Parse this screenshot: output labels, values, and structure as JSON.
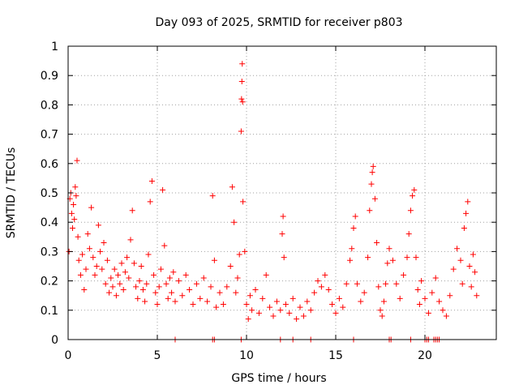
{
  "chart_data": {
    "type": "scatter",
    "title": "Day 093 of 2025, SRMTID for receiver p803",
    "xlabel": "GPS time / hours",
    "ylabel": "SRMTID / TECUs",
    "xlim": [
      0,
      24
    ],
    "ylim": [
      0,
      1
    ],
    "x_ticks": [
      0,
      5,
      10,
      15,
      20
    ],
    "x_tick_labels": [
      "0",
      "5",
      "10",
      "15",
      "20"
    ],
    "y_ticks": [
      0,
      0.1,
      0.2,
      0.3,
      0.4,
      0.5,
      0.6,
      0.7,
      0.8,
      0.9,
      1
    ],
    "y_tick_labels": [
      "0",
      "0.1",
      "0.2",
      "0.3",
      "0.4",
      "0.5",
      "0.6",
      "0.7",
      "0.8",
      "0.9",
      "1"
    ],
    "grid": true,
    "marker": "+",
    "series_color": "#ff0000",
    "series": [
      {
        "name": "SRMTID",
        "points": [
          [
            0.05,
            0.3
          ],
          [
            0.1,
            0.48
          ],
          [
            0.15,
            0.5
          ],
          [
            0.2,
            0.43
          ],
          [
            0.25,
            0.38
          ],
          [
            0.3,
            0.46
          ],
          [
            0.35,
            0.41
          ],
          [
            0.4,
            0.52
          ],
          [
            0.45,
            0.49
          ],
          [
            0.5,
            0.61
          ],
          [
            0.55,
            0.35
          ],
          [
            0.6,
            0.27
          ],
          [
            0.7,
            0.22
          ],
          [
            0.8,
            0.29
          ],
          [
            0.9,
            0.17
          ],
          [
            1.0,
            0.24
          ],
          [
            1.1,
            0.36
          ],
          [
            1.2,
            0.31
          ],
          [
            1.3,
            0.45
          ],
          [
            1.4,
            0.28
          ],
          [
            1.5,
            0.22
          ],
          [
            1.6,
            0.25
          ],
          [
            1.7,
            0.39
          ],
          [
            1.8,
            0.3
          ],
          [
            1.9,
            0.24
          ],
          [
            2.0,
            0.33
          ],
          [
            2.1,
            0.19
          ],
          [
            2.2,
            0.27
          ],
          [
            2.3,
            0.16
          ],
          [
            2.4,
            0.21
          ],
          [
            2.5,
            0.18
          ],
          [
            2.6,
            0.24
          ],
          [
            2.7,
            0.15
          ],
          [
            2.8,
            0.22
          ],
          [
            2.9,
            0.19
          ],
          [
            3.0,
            0.26
          ],
          [
            3.1,
            0.17
          ],
          [
            3.2,
            0.23
          ],
          [
            3.3,
            0.28
          ],
          [
            3.4,
            0.21
          ],
          [
            3.5,
            0.34
          ],
          [
            3.6,
            0.44
          ],
          [
            3.7,
            0.26
          ],
          [
            3.8,
            0.18
          ],
          [
            3.9,
            0.14
          ],
          [
            4.0,
            0.2
          ],
          [
            4.1,
            0.25
          ],
          [
            4.2,
            0.17
          ],
          [
            4.3,
            0.13
          ],
          [
            4.4,
            0.19
          ],
          [
            4.5,
            0.29
          ],
          [
            4.6,
            0.47
          ],
          [
            4.7,
            0.54
          ],
          [
            4.8,
            0.22
          ],
          [
            4.9,
            0.16
          ],
          [
            5.0,
            0.12
          ],
          [
            5.1,
            0.18
          ],
          [
            5.2,
            0.24
          ],
          [
            5.3,
            0.51
          ],
          [
            5.4,
            0.32
          ],
          [
            5.5,
            0.19
          ],
          [
            5.6,
            0.14
          ],
          [
            5.7,
            0.21
          ],
          [
            5.8,
            0.16
          ],
          [
            5.9,
            0.23
          ],
          [
            6.0,
            0.13
          ],
          [
            6.2,
            0.2
          ],
          [
            6.4,
            0.15
          ],
          [
            6.6,
            0.22
          ],
          [
            6.8,
            0.17
          ],
          [
            7.0,
            0.12
          ],
          [
            7.2,
            0.19
          ],
          [
            7.4,
            0.14
          ],
          [
            7.6,
            0.21
          ],
          [
            7.8,
            0.13
          ],
          [
            8.0,
            0.18
          ],
          [
            8.1,
            0.49
          ],
          [
            8.2,
            0.27
          ],
          [
            8.3,
            0.11
          ],
          [
            8.5,
            0.16
          ],
          [
            8.7,
            0.12
          ],
          [
            8.9,
            0.18
          ],
          [
            9.1,
            0.25
          ],
          [
            9.2,
            0.52
          ],
          [
            9.3,
            0.4
          ],
          [
            9.4,
            0.16
          ],
          [
            9.5,
            0.21
          ],
          [
            9.6,
            0.29
          ],
          [
            9.7,
            0.71
          ],
          [
            9.72,
            0.82
          ],
          [
            9.74,
            0.88
          ],
          [
            9.76,
            0.94
          ],
          [
            9.78,
            0.81
          ],
          [
            9.8,
            0.47
          ],
          [
            9.9,
            0.3
          ],
          [
            10.0,
            0.12
          ],
          [
            10.1,
            0.07
          ],
          [
            10.2,
            0.15
          ],
          [
            10.3,
            0.1
          ],
          [
            10.5,
            0.17
          ],
          [
            10.7,
            0.09
          ],
          [
            10.9,
            0.14
          ],
          [
            11.1,
            0.22
          ],
          [
            11.3,
            0.11
          ],
          [
            11.5,
            0.08
          ],
          [
            11.7,
            0.13
          ],
          [
            11.9,
            0.1
          ],
          [
            12.0,
            0.36
          ],
          [
            12.05,
            0.42
          ],
          [
            12.1,
            0.28
          ],
          [
            12.2,
            0.12
          ],
          [
            12.4,
            0.09
          ],
          [
            12.6,
            0.14
          ],
          [
            12.8,
            0.07
          ],
          [
            13.0,
            0.11
          ],
          [
            13.2,
            0.08
          ],
          [
            13.4,
            0.13
          ],
          [
            13.6,
            0.1
          ],
          [
            13.8,
            0.16
          ],
          [
            14.0,
            0.2
          ],
          [
            14.2,
            0.18
          ],
          [
            14.4,
            0.22
          ],
          [
            14.6,
            0.17
          ],
          [
            14.8,
            0.12
          ],
          [
            15.0,
            0.09
          ],
          [
            15.2,
            0.14
          ],
          [
            15.4,
            0.11
          ],
          [
            15.6,
            0.19
          ],
          [
            15.8,
            0.27
          ],
          [
            15.9,
            0.31
          ],
          [
            16.0,
            0.38
          ],
          [
            16.1,
            0.42
          ],
          [
            16.2,
            0.19
          ],
          [
            16.4,
            0.13
          ],
          [
            16.6,
            0.16
          ],
          [
            16.8,
            0.28
          ],
          [
            16.9,
            0.44
          ],
          [
            17.0,
            0.53
          ],
          [
            17.05,
            0.57
          ],
          [
            17.1,
            0.59
          ],
          [
            17.2,
            0.48
          ],
          [
            17.3,
            0.33
          ],
          [
            17.4,
            0.18
          ],
          [
            17.5,
            0.1
          ],
          [
            17.6,
            0.08
          ],
          [
            17.7,
            0.13
          ],
          [
            17.8,
            0.19
          ],
          [
            17.9,
            0.26
          ],
          [
            18.0,
            0.31
          ],
          [
            18.2,
            0.27
          ],
          [
            18.4,
            0.19
          ],
          [
            18.6,
            0.14
          ],
          [
            18.8,
            0.22
          ],
          [
            19.0,
            0.28
          ],
          [
            19.1,
            0.36
          ],
          [
            19.2,
            0.44
          ],
          [
            19.3,
            0.49
          ],
          [
            19.4,
            0.51
          ],
          [
            19.5,
            0.28
          ],
          [
            19.6,
            0.17
          ],
          [
            19.7,
            0.12
          ],
          [
            19.8,
            0.2
          ],
          [
            20.0,
            0.14
          ],
          [
            20.2,
            0.09
          ],
          [
            20.4,
            0.16
          ],
          [
            20.6,
            0.21
          ],
          [
            20.8,
            0.13
          ],
          [
            21.0,
            0.1
          ],
          [
            21.2,
            0.08
          ],
          [
            21.4,
            0.15
          ],
          [
            21.6,
            0.24
          ],
          [
            21.8,
            0.31
          ],
          [
            22.0,
            0.27
          ],
          [
            22.1,
            0.19
          ],
          [
            22.2,
            0.38
          ],
          [
            22.3,
            0.43
          ],
          [
            22.4,
            0.47
          ],
          [
            22.5,
            0.25
          ],
          [
            22.6,
            0.18
          ],
          [
            22.7,
            0.29
          ],
          [
            22.8,
            0.23
          ],
          [
            22.9,
            0.15
          ]
        ],
        "zero_points": [
          6.0,
          8.1,
          8.2,
          9.7,
          11.9,
          12.6,
          13.6,
          16.0,
          18.0,
          18.1,
          19.2,
          20.0,
          20.1,
          20.2,
          20.5,
          20.6,
          20.7,
          20.8
        ]
      }
    ]
  }
}
